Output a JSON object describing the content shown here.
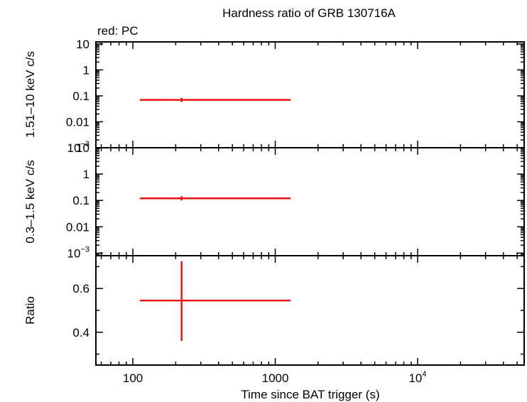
{
  "chart_data": {
    "type": "scatter",
    "title": "Hardness ratio of GRB 130716A",
    "subtitle": "red: PC",
    "xlabel": "Time since BAT trigger (s)",
    "xscale": "log",
    "xlim": [
      55,
      56000
    ],
    "xticks": [
      {
        "value": 100,
        "base": "100",
        "exp": ""
      },
      {
        "value": 1000,
        "base": "1000",
        "exp": ""
      },
      {
        "value": 10000,
        "base": "10",
        "exp": "4"
      }
    ],
    "panels": [
      {
        "id": "hard",
        "ylabel": "1.51–10 keV c/s",
        "yscale": "log",
        "ylim": [
          0.001,
          12
        ],
        "yticks": [
          {
            "value": 10,
            "base": "10",
            "exp": ""
          },
          {
            "value": 1,
            "base": "1",
            "exp": ""
          },
          {
            "value": 0.1,
            "base": "0.1",
            "exp": ""
          },
          {
            "value": 0.01,
            "base": "0.01",
            "exp": ""
          },
          {
            "value": 0.001,
            "base": "10",
            "exp": "−3"
          }
        ],
        "points": [
          {
            "series": "PC",
            "x": 220,
            "xmin": 112,
            "xmax": 1280,
            "y": 0.07,
            "ymin": 0.058,
            "ymax": 0.084
          }
        ]
      },
      {
        "id": "soft",
        "ylabel": "0.3–1.5 keV c/s",
        "yscale": "log",
        "ylim": [
          0.0008,
          10
        ],
        "yticks": [
          {
            "value": 10,
            "base": "10",
            "exp": ""
          },
          {
            "value": 1,
            "base": "1",
            "exp": ""
          },
          {
            "value": 0.1,
            "base": "0.1",
            "exp": ""
          },
          {
            "value": 0.01,
            "base": "0.01",
            "exp": ""
          },
          {
            "value": 0.001,
            "base": "10",
            "exp": "−3"
          }
        ],
        "points": [
          {
            "series": "PC",
            "x": 220,
            "xmin": 112,
            "xmax": 1280,
            "y": 0.12,
            "ymin": 0.1,
            "ymax": 0.145
          }
        ]
      },
      {
        "id": "ratio",
        "ylabel": "Ratio",
        "yscale": "linear",
        "ylim": [
          0.25,
          0.75
        ],
        "yticks": [
          {
            "value": 0.6,
            "base": "0.6",
            "exp": ""
          },
          {
            "value": 0.4,
            "base": "0.4",
            "exp": ""
          }
        ],
        "points": [
          {
            "series": "PC",
            "x": 220,
            "xmin": 112,
            "xmax": 1280,
            "y": 0.545,
            "ymin": 0.36,
            "ymax": 0.725
          }
        ]
      }
    ],
    "series": [
      {
        "name": "PC",
        "color": "#ee1111"
      }
    ]
  }
}
